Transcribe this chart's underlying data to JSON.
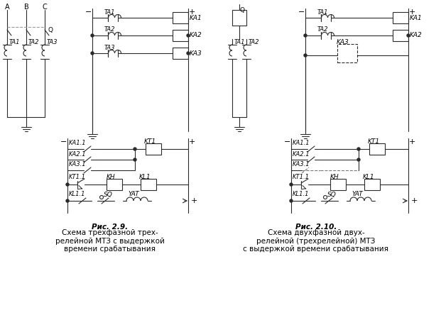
{
  "fig_width": 6.21,
  "fig_height": 4.58,
  "dpi": 100,
  "bg": "#ffffff",
  "lc": "#2a2a2a",
  "lw": 0.8,
  "caption_left_bold": "Рис. 2.9.",
  "caption_left_normal": " Схема трехфазной трех-\nрелейной МТЗ с выдержкой\nвремени срабатывания",
  "caption_right_bold": "Рис. 2.10.",
  "caption_right_normal": " Схема двухфазной двух-\nрелейной (трехрелейной) МТЗ\nс выдержкой времени срабатывания"
}
